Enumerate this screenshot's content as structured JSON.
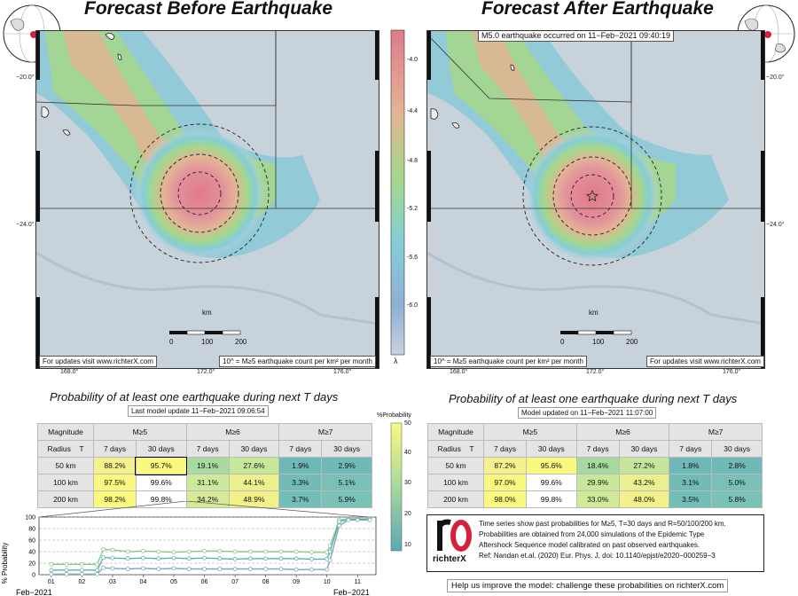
{
  "left_panel": {
    "title": "Forecast Before Earthquake",
    "credit_left": "For updates visit www.richterX.com",
    "credit_right": "10^ = M≥5 earthquake count per km² per month",
    "lat_labels": [
      "−20.0°",
      "−24.0°"
    ],
    "lon_labels": [
      "168.0°",
      "172.0°",
      "176.0°"
    ],
    "km_label": "km",
    "km_ticks": [
      "0",
      "100",
      "200"
    ]
  },
  "right_panel": {
    "title": "Forecast After Earthquake",
    "event_label": "M5.0 earthquake occurred on 11−Feb−2021 09:40:19",
    "credit_left": "10^ = M≥5 earthquake count per km² per month",
    "credit_right": "For updates visit www.richterX.com",
    "lat_labels": [
      "−20.0°",
      "−24.0°"
    ],
    "lon_labels": [
      "168.0°",
      "172.0°",
      "176.0°"
    ],
    "km_label": "km",
    "km_ticks": [
      "0",
      "100",
      "200"
    ]
  },
  "colorbar": {
    "symbol": "λ",
    "ticks": [
      "-4.0",
      "-4.4",
      "-4.8",
      "-5.2",
      "-5.6",
      "-6.0"
    ],
    "colors": [
      "#e1828f",
      "#e3b394",
      "#a6d78a",
      "#85cdd8",
      "#8fb0d6"
    ]
  },
  "prob_colorbar": {
    "label": "%Probability",
    "ticks": [
      "50",
      "40",
      "30",
      "20",
      "10"
    ]
  },
  "left_table": {
    "title": "Probability of at least one earthquake during next T days",
    "update": "Last model update 11−Feb−2021 09:06:54",
    "hdr_magnitude": "Magnitude",
    "hdr_radius": "Radius",
    "hdr_T": "T",
    "mags": [
      "M≥5",
      "M≥6",
      "M≥7"
    ],
    "periods": [
      "7 days",
      "30 days",
      "7 days",
      "30 days",
      "7 days",
      "30 days"
    ],
    "rows": [
      {
        "radius": "50 km",
        "values": [
          "88.2%",
          "95.7%",
          "19.1%",
          "27.6%",
          "1.9%",
          "2.9%"
        ]
      },
      {
        "radius": "100 km",
        "values": [
          "97.5%",
          "99.6%",
          "31.1%",
          "44.1%",
          "3.3%",
          "5.1%"
        ]
      },
      {
        "radius": "200 km",
        "values": [
          "98.2%",
          "99.8%",
          "34.2%",
          "48.9%",
          "3.7%",
          "5.9%"
        ]
      }
    ]
  },
  "right_table": {
    "title": "Probability of at least one earthquake during next T days",
    "update": "Model updated on 11−Feb−2021 11:07:00",
    "hdr_magnitude": "Magnitude",
    "hdr_radius": "Radius",
    "hdr_T": "T",
    "mags": [
      "M≥5",
      "M≥6",
      "M≥7"
    ],
    "periods": [
      "7 days",
      "30 days",
      "7 days",
      "30 days",
      "7 days",
      "30 days"
    ],
    "rows": [
      {
        "radius": "50 km",
        "values": [
          "87.2%",
          "95.6%",
          "18.4%",
          "27.2%",
          "1.8%",
          "2.8%"
        ]
      },
      {
        "radius": "100 km",
        "values": [
          "97.0%",
          "99.6%",
          "29.9%",
          "43.2%",
          "3.1%",
          "5.0%"
        ]
      },
      {
        "radius": "200 km",
        "values": [
          "98.0%",
          "99.8%",
          "33.0%",
          "48.0%",
          "3.5%",
          "5.8%"
        ]
      }
    ]
  },
  "info_box": {
    "lines": [
      "Time series show past probabilities for M≥5, T=30 days and R=50/100/200 km.",
      "Probabilities are obtained from 24,000 simulations of the Epidemic Type",
      "Aftershock Sequence model calibrated on past observed earthquakes.",
      "Ref: Nandan et.al. (2020) Eur. Phys. J, doi: 10.1140/epjst/e2020−000259−3"
    ],
    "logo_text": "richterX"
  },
  "help_text": "Help us improve the model: challenge these probabilities on richterX.com",
  "chart_data": {
    "type": "line",
    "ylabel": "% Probability",
    "ylim": [
      0,
      100
    ],
    "yticks": [
      "0",
      "20",
      "40",
      "60",
      "80",
      "100"
    ],
    "x_tick_labels": [
      "01",
      "02",
      "03",
      "04",
      "05",
      "06",
      "07",
      "08",
      "09",
      "10",
      "11"
    ],
    "x_sub_left": "Feb−2021",
    "x_sub_right": "Feb−2021",
    "x": [
      1.0,
      1.5,
      2.0,
      2.5,
      2.7,
      3.0,
      3.5,
      4.0,
      4.5,
      5.0,
      5.5,
      6.0,
      6.5,
      7.0,
      7.5,
      8.0,
      8.5,
      9.0,
      9.5,
      10.0,
      10.1,
      10.4,
      10.7,
      11.0,
      11.4
    ],
    "series": [
      {
        "values": [
          18,
          18,
          18,
          18,
          44,
          43,
          40,
          41,
          40,
          39,
          40,
          41,
          41,
          40,
          40,
          40,
          40,
          40,
          39,
          39,
          50,
          95,
          97,
          97,
          97
        ]
      },
      {
        "values": [
          8,
          8,
          8,
          8,
          30,
          29,
          28,
          29,
          28,
          29,
          28,
          29,
          28,
          27,
          28,
          28,
          28,
          28,
          27,
          27,
          40,
          92,
          96,
          96,
          96
        ]
      },
      {
        "values": [
          1,
          1,
          1,
          1,
          12,
          11,
          10,
          11,
          10,
          11,
          10,
          10,
          10,
          10,
          10,
          10,
          10,
          9,
          9,
          9,
          25,
          85,
          95,
          95,
          95
        ]
      }
    ]
  }
}
